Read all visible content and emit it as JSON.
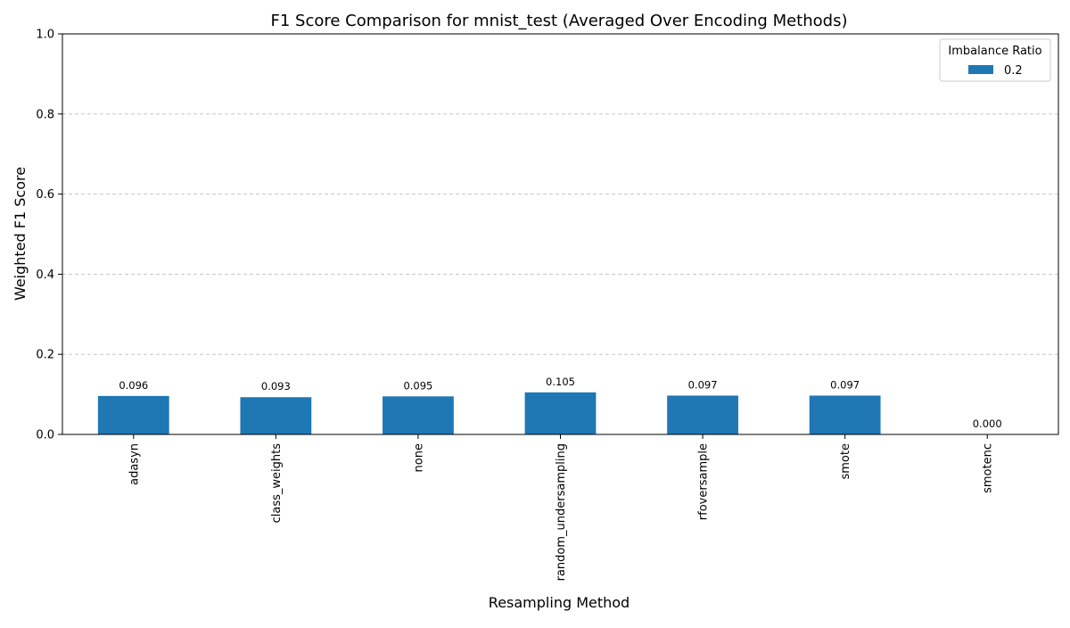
{
  "chart_data": {
    "type": "bar",
    "title": "F1 Score Comparison for mnist_test (Averaged Over Encoding Methods)",
    "xlabel": "Resampling Method",
    "ylabel": "Weighted F1 Score",
    "categories": [
      "adasyn",
      "class_weights",
      "none",
      "random_undersampling",
      "rfoversample",
      "smote",
      "smotenc"
    ],
    "series": [
      {
        "name": "0.2",
        "color": "#1f77b4",
        "values": [
          0.096,
          0.093,
          0.095,
          0.105,
          0.097,
          0.097,
          0.0
        ],
        "labels": [
          "0.096",
          "0.093",
          "0.095",
          "0.105",
          "0.097",
          "0.097",
          "0.000"
        ]
      }
    ],
    "ylim": [
      0,
      1.0
    ],
    "yticks": [
      0.0,
      0.2,
      0.4,
      0.6,
      0.8,
      1.0
    ],
    "ytick_labels": [
      "0.0",
      "0.2",
      "0.4",
      "0.6",
      "0.8",
      "1.0"
    ],
    "grid": "y-dashed",
    "legend": {
      "title": "Imbalance Ratio",
      "placement": "top-right"
    }
  }
}
